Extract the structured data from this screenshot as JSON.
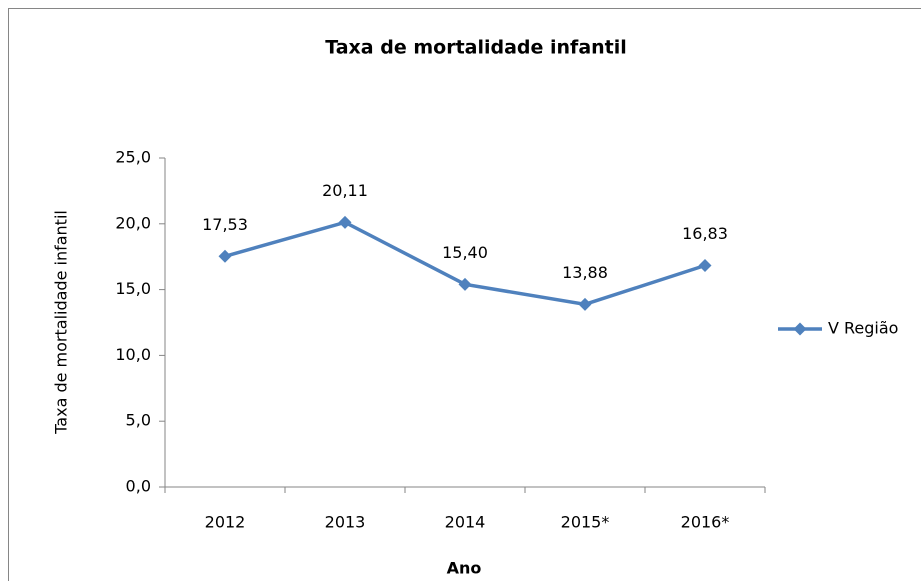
{
  "chart_data": {
    "type": "line",
    "title": "Taxa de mortalidade infantil",
    "x_label": "Ano",
    "y_label": "Taxa de mortalidade infantil",
    "categories": [
      "2012",
      "2013",
      "2014",
      "2015*",
      "2016*"
    ],
    "series": [
      {
        "name": "V  Região",
        "color": "#4f81bd",
        "values": [
          17.53,
          20.11,
          15.4,
          13.88,
          16.83
        ],
        "value_labels": [
          "17,53",
          "20,11",
          "15,40",
          "13,88",
          "16,83"
        ]
      }
    ],
    "ylim": [
      0,
      25
    ],
    "yticks": [
      {
        "value": 0,
        "label": "0,0"
      },
      {
        "value": 5,
        "label": "5,0"
      },
      {
        "value": 10,
        "label": "10,0"
      },
      {
        "value": 15,
        "label": "15,0"
      },
      {
        "value": 20,
        "label": "20,0"
      },
      {
        "value": 25,
        "label": "25,0"
      }
    ],
    "grid": false,
    "legend": "right"
  }
}
